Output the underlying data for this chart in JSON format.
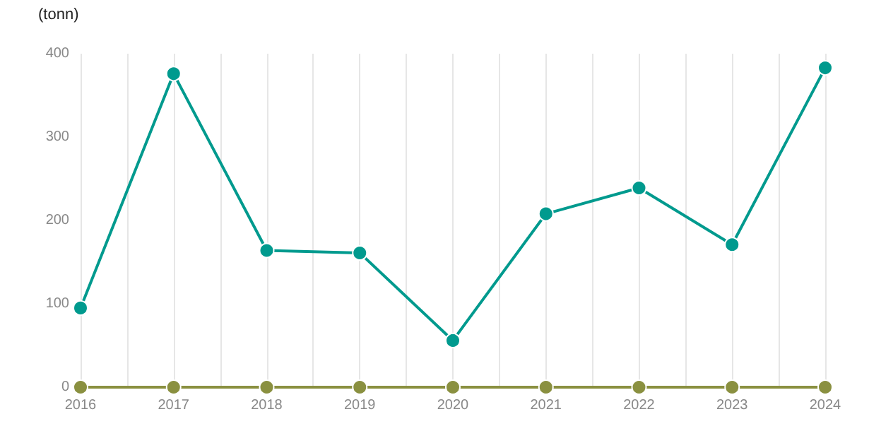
{
  "chart_data": {
    "type": "line",
    "ylabel": "(tonn)",
    "x": [
      2016,
      2017,
      2018,
      2019,
      2020,
      2021,
      2022,
      2023,
      2024
    ],
    "series": [
      {
        "color": "#009a8e",
        "values": [
          95,
          376,
          164,
          161,
          56,
          208,
          239,
          171,
          383
        ]
      },
      {
        "color": "#8a9040",
        "values": [
          0,
          0,
          0,
          0,
          0,
          0,
          0,
          0,
          0
        ]
      }
    ],
    "xlim": [
      2016,
      2024
    ],
    "xticks": [
      2016,
      {
        "value": 2016.5,
        "label": null
      },
      2017,
      {
        "value": 2017.5,
        "label": null
      },
      2018,
      {
        "value": 2018.5,
        "label": null
      },
      2019,
      {
        "value": 2019.5,
        "label": null
      },
      2020,
      {
        "value": 2020.5,
        "label": null
      },
      2021,
      {
        "value": 2021.5,
        "label": null
      },
      2022,
      {
        "value": 2022.5,
        "label": null
      },
      2023,
      {
        "value": 2023.5,
        "label": null
      },
      2024
    ],
    "ylim": [
      0,
      400
    ],
    "yticks": [
      0,
      100,
      200,
      300,
      400
    ],
    "grid": "x",
    "marker": "circle",
    "line_style": "solid"
  }
}
